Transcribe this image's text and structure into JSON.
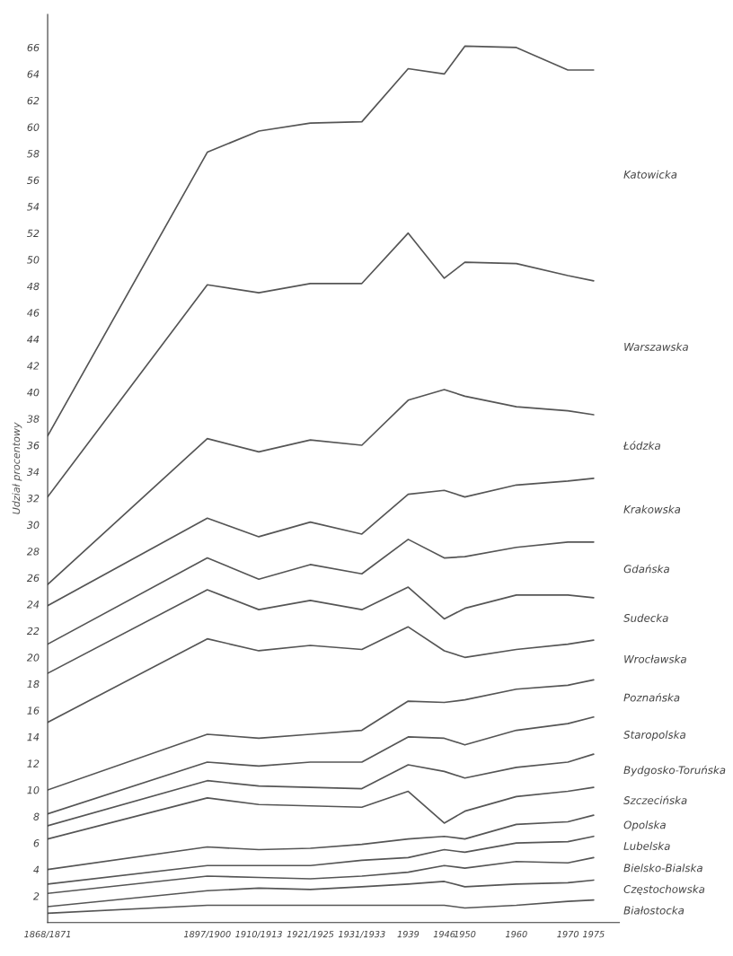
{
  "chart_data": {
    "type": "line",
    "ylabel": "Udział procentowy",
    "x": [
      1869,
      1900,
      1910,
      1920,
      1930,
      1939,
      1946,
      1950,
      1960,
      1970,
      1975
    ],
    "xlim": [
      1869,
      1980
    ],
    "xticks": [
      {
        "value": 1869,
        "label": "1868/1871"
      },
      {
        "value": 1900,
        "label": "1897/1900"
      },
      {
        "value": 1910,
        "label": "1910/1913"
      },
      {
        "value": 1920,
        "label": "1921/1925"
      },
      {
        "value": 1930,
        "label": "1931/1933"
      },
      {
        "value": 1939,
        "label": "1939"
      },
      {
        "value": 1946,
        "label": "1946"
      },
      {
        "value": 1950,
        "label": "1950"
      },
      {
        "value": 1960,
        "label": "1960"
      },
      {
        "value": 1970,
        "label": "1970"
      },
      {
        "value": 1975,
        "label": "1975"
      }
    ],
    "ylim": [
      0,
      68.5
    ],
    "yticks": [
      2,
      4,
      6,
      8,
      10,
      12,
      14,
      16,
      18,
      20,
      22,
      24,
      26,
      28,
      30,
      32,
      34,
      36,
      38,
      40,
      42,
      44,
      46,
      48,
      50,
      52,
      54,
      56,
      58,
      60,
      62,
      64,
      66
    ],
    "grid": false,
    "legend": false,
    "marker": "none",
    "line_style": "solid",
    "series": [
      {
        "name": "Katowicka",
        "color": "#555555",
        "values": [
          36.7,
          58.1,
          59.7,
          60.3,
          60.4,
          64.4,
          64.0,
          66.1,
          66.0,
          64.3,
          64.3
        ]
      },
      {
        "name": "Warszawska",
        "color": "#555555",
        "values": [
          32.1,
          48.1,
          47.5,
          48.2,
          48.2,
          52.0,
          48.6,
          49.8,
          49.7,
          48.8,
          48.4
        ]
      },
      {
        "name": "Łódzka",
        "color": "#555555",
        "values": [
          25.5,
          36.5,
          35.5,
          36.4,
          36.0,
          39.4,
          40.2,
          39.7,
          38.9,
          38.6,
          38.3
        ]
      },
      {
        "name": "Krakowska",
        "color": "#555555",
        "values": [
          23.9,
          30.5,
          29.1,
          30.2,
          29.3,
          32.3,
          32.6,
          32.1,
          33.0,
          33.3,
          33.5
        ]
      },
      {
        "name": "Gdańska",
        "color": "#555555",
        "values": [
          21.0,
          27.5,
          25.9,
          27.0,
          26.3,
          28.9,
          27.5,
          27.6,
          28.3,
          28.7,
          28.7
        ]
      },
      {
        "name": "Sudecka",
        "color": "#555555",
        "values": [
          18.8,
          25.1,
          23.6,
          24.3,
          23.6,
          25.3,
          22.9,
          23.7,
          24.7,
          24.7,
          24.5
        ]
      },
      {
        "name": "Wrocławska",
        "color": "#555555",
        "values": [
          15.1,
          21.4,
          20.5,
          20.9,
          20.6,
          22.3,
          20.5,
          20.0,
          20.6,
          21.0,
          21.3
        ]
      },
      {
        "name": "Poznańska",
        "color": "#555555",
        "values": [
          10.0,
          14.2,
          13.9,
          14.2,
          14.5,
          16.7,
          16.6,
          16.8,
          17.6,
          17.9,
          18.3
        ]
      },
      {
        "name": "Staropolska",
        "color": "#555555",
        "values": [
          8.2,
          12.1,
          11.8,
          12.1,
          12.1,
          14.0,
          13.9,
          13.4,
          14.5,
          15.0,
          15.5
        ]
      },
      {
        "name": "Bydgosko-Toruńska",
        "color": "#555555",
        "values": [
          7.3,
          10.7,
          10.3,
          10.2,
          10.1,
          11.9,
          11.4,
          10.9,
          11.7,
          12.1,
          12.7
        ]
      },
      {
        "name": "Szczecińska",
        "color": "#555555",
        "values": [
          6.3,
          9.4,
          8.9,
          8.8,
          8.7,
          9.9,
          7.5,
          8.4,
          9.5,
          9.9,
          10.2
        ]
      },
      {
        "name": "Opolska",
        "color": "#555555",
        "values": [
          4.0,
          5.7,
          5.5,
          5.6,
          5.9,
          6.3,
          6.5,
          6.3,
          7.4,
          7.6,
          8.1
        ]
      },
      {
        "name": "Lubelska",
        "color": "#555555",
        "values": [
          2.9,
          4.3,
          4.3,
          4.3,
          4.7,
          4.9,
          5.5,
          5.3,
          6.0,
          6.1,
          6.5
        ]
      },
      {
        "name": "Bielsko-Bialska",
        "color": "#555555",
        "values": [
          2.2,
          3.5,
          3.4,
          3.3,
          3.5,
          3.8,
          4.3,
          4.1,
          4.6,
          4.5,
          4.9
        ]
      },
      {
        "name": "Częstochowska",
        "color": "#555555",
        "values": [
          1.2,
          2.4,
          2.6,
          2.5,
          2.7,
          2.9,
          3.1,
          2.7,
          2.9,
          3.0,
          3.2
        ]
      },
      {
        "name": "Białostocka",
        "color": "#555555",
        "values": [
          0.7,
          1.3,
          1.3,
          1.3,
          1.3,
          1.3,
          1.3,
          1.1,
          1.3,
          1.6,
          1.7
        ]
      }
    ]
  }
}
